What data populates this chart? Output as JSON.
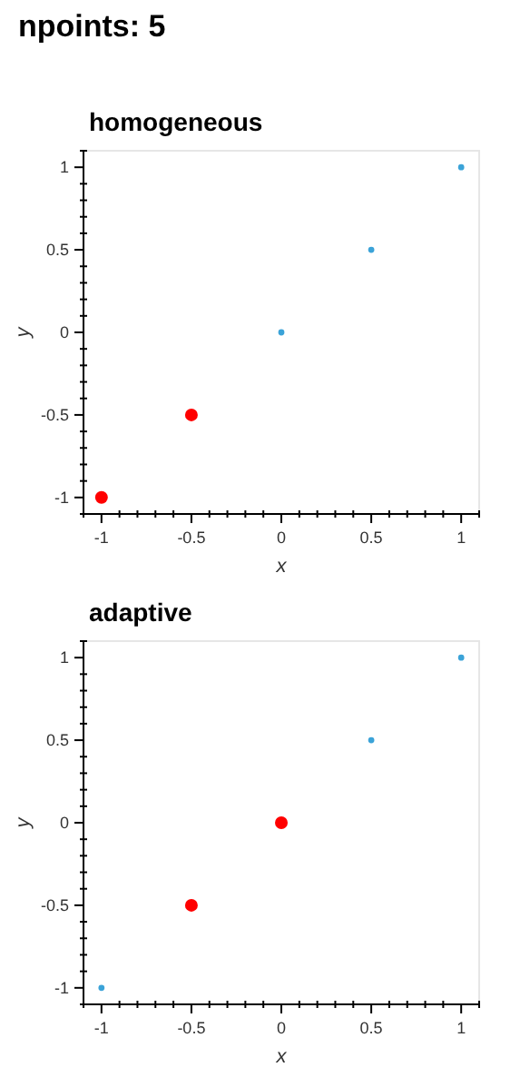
{
  "chart_data": [
    {
      "type": "scatter",
      "title": "homogeneous",
      "annotations": [
        "npoints: 5"
      ],
      "xlabel": "x",
      "ylabel": "y",
      "marker": "circle",
      "grid": false,
      "xlim": [
        -1.1,
        1.1
      ],
      "ylim": [
        -1.1,
        1.1
      ],
      "xticks": [
        {
          "value": -1.1,
          "label": null
        },
        -1,
        {
          "value": -0.9,
          "label": null
        },
        {
          "value": -0.8,
          "label": null
        },
        {
          "value": -0.7,
          "label": null
        },
        {
          "value": -0.6,
          "label": null
        },
        -0.5,
        {
          "value": -0.4,
          "label": null
        },
        {
          "value": -0.3,
          "label": null
        },
        {
          "value": -0.2,
          "label": null
        },
        {
          "value": -0.1,
          "label": null
        },
        0,
        {
          "value": 0.1,
          "label": null
        },
        {
          "value": 0.2,
          "label": null
        },
        {
          "value": 0.3,
          "label": null
        },
        {
          "value": 0.4,
          "label": null
        },
        0.5,
        {
          "value": 0.6,
          "label": null
        },
        {
          "value": 0.7,
          "label": null
        },
        {
          "value": 0.8,
          "label": null
        },
        {
          "value": 0.9,
          "label": null
        },
        1,
        {
          "value": 1.1,
          "label": null
        }
      ],
      "yticks": [
        {
          "value": -1.1,
          "label": null
        },
        -1,
        {
          "value": -0.9,
          "label": null
        },
        {
          "value": -0.8,
          "label": null
        },
        {
          "value": -0.7,
          "label": null
        },
        {
          "value": -0.6,
          "label": null
        },
        -0.5,
        {
          "value": -0.4,
          "label": null
        },
        {
          "value": -0.3,
          "label": null
        },
        {
          "value": -0.2,
          "label": null
        },
        {
          "value": -0.1,
          "label": null
        },
        0,
        {
          "value": 0.1,
          "label": null
        },
        {
          "value": 0.2,
          "label": null
        },
        {
          "value": 0.3,
          "label": null
        },
        {
          "value": 0.4,
          "label": null
        },
        0.5,
        {
          "value": 0.6,
          "label": null
        },
        {
          "value": 0.7,
          "label": null
        },
        {
          "value": 0.8,
          "label": null
        },
        {
          "value": 0.9,
          "label": null
        },
        1,
        {
          "value": 1.1,
          "label": null
        }
      ],
      "series": [
        {
          "color": "#ff0000",
          "x": [
            -1,
            -0.5
          ],
          "values": [
            -1,
            -0.5
          ]
        },
        {
          "color": "#3ba3d8",
          "x": [
            0,
            0.5,
            1
          ],
          "values": [
            0,
            0.5,
            1
          ]
        }
      ]
    },
    {
      "type": "scatter",
      "title": "adaptive",
      "xlabel": "x",
      "ylabel": "y",
      "marker": "circle",
      "grid": false,
      "xlim": [
        -1.1,
        1.1
      ],
      "ylim": [
        -1.1,
        1.1
      ],
      "xticks": [
        {
          "value": -1.1,
          "label": null
        },
        -1,
        {
          "value": -0.9,
          "label": null
        },
        {
          "value": -0.8,
          "label": null
        },
        {
          "value": -0.7,
          "label": null
        },
        {
          "value": -0.6,
          "label": null
        },
        -0.5,
        {
          "value": -0.4,
          "label": null
        },
        {
          "value": -0.3,
          "label": null
        },
        {
          "value": -0.2,
          "label": null
        },
        {
          "value": -0.1,
          "label": null
        },
        0,
        {
          "value": 0.1,
          "label": null
        },
        {
          "value": 0.2,
          "label": null
        },
        {
          "value": 0.3,
          "label": null
        },
        {
          "value": 0.4,
          "label": null
        },
        0.5,
        {
          "value": 0.6,
          "label": null
        },
        {
          "value": 0.7,
          "label": null
        },
        {
          "value": 0.8,
          "label": null
        },
        {
          "value": 0.9,
          "label": null
        },
        1,
        {
          "value": 1.1,
          "label": null
        }
      ],
      "yticks": [
        {
          "value": -1.1,
          "label": null
        },
        -1,
        {
          "value": -0.9,
          "label": null
        },
        {
          "value": -0.8,
          "label": null
        },
        {
          "value": -0.7,
          "label": null
        },
        {
          "value": -0.6,
          "label": null
        },
        -0.5,
        {
          "value": -0.4,
          "label": null
        },
        {
          "value": -0.3,
          "label": null
        },
        {
          "value": -0.2,
          "label": null
        },
        {
          "value": -0.1,
          "label": null
        },
        0,
        {
          "value": 0.1,
          "label": null
        },
        {
          "value": 0.2,
          "label": null
        },
        {
          "value": 0.3,
          "label": null
        },
        {
          "value": 0.4,
          "label": null
        },
        0.5,
        {
          "value": 0.6,
          "label": null
        },
        {
          "value": 0.7,
          "label": null
        },
        {
          "value": 0.8,
          "label": null
        },
        {
          "value": 0.9,
          "label": null
        },
        1,
        {
          "value": 1.1,
          "label": null
        }
      ],
      "series": [
        {
          "color": "#ff0000",
          "x": [
            -0.5,
            0
          ],
          "values": [
            -0.5,
            0
          ]
        },
        {
          "color": "#3ba3d8",
          "x": [
            -1,
            0.5,
            1
          ],
          "values": [
            -1,
            0.5,
            1
          ]
        }
      ]
    }
  ]
}
